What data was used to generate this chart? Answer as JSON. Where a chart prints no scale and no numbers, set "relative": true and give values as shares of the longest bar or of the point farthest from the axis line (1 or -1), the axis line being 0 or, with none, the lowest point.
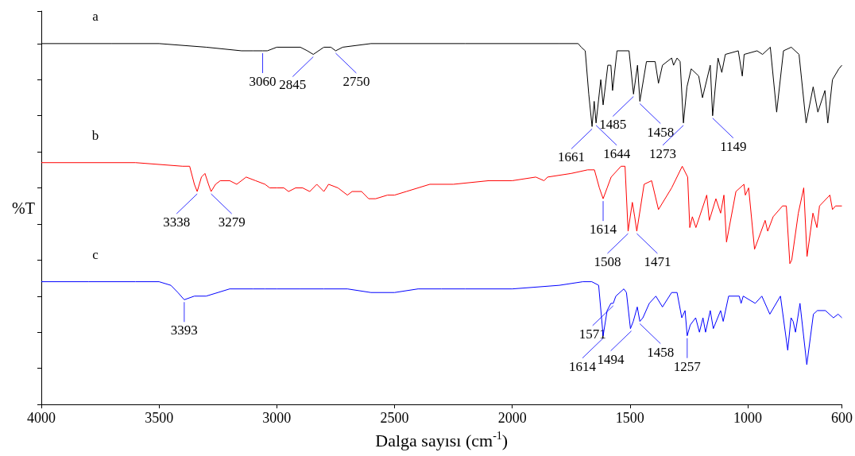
{
  "chart_data": {
    "type": "line",
    "relative": true,
    "xlabel": "Dalga sayısı (cm$^{-1}$)",
    "ylabel": "%T",
    "xlim": [
      4000,
      600
    ],
    "xticks": [
      4000,
      3500,
      3000,
      2500,
      2000,
      1500,
      1000,
      600
    ],
    "grid": false,
    "legend": false,
    "series": [
      {
        "name": "a",
        "color": "#000000",
        "x": [
          4000,
          3700,
          3500,
          3300,
          3150,
          3100,
          3060,
          3040,
          3000,
          2900,
          2870,
          2845,
          2800,
          2770,
          2750,
          2720,
          2600,
          2200,
          1800,
          1720,
          1707,
          1690,
          1675,
          1661,
          1652,
          1644,
          1624,
          1614,
          1594,
          1581,
          1574,
          1555,
          1504,
          1485,
          1468,
          1458,
          1430,
          1393,
          1379,
          1362,
          1323,
          1315,
          1300,
          1287,
          1273,
          1258,
          1240,
          1208,
          1192,
          1159,
          1149,
          1126,
          1110,
          1095,
          1040,
          1023,
          1015,
          960,
          937,
          904,
          877,
          848,
          815,
          782,
          752,
          722,
          702,
          672,
          660,
          640,
          613,
          600
        ],
        "values": [
          1.0,
          1.0,
          1.0,
          0.99,
          0.98,
          0.98,
          0.98,
          0.98,
          0.99,
          0.99,
          0.98,
          0.97,
          0.99,
          0.99,
          0.98,
          0.99,
          1.0,
          1.0,
          1.0,
          1.0,
          0.99,
          0.98,
          0.86,
          0.77,
          0.84,
          0.78,
          0.9,
          0.83,
          0.94,
          0.94,
          0.87,
          0.98,
          0.98,
          0.86,
          0.94,
          0.84,
          0.95,
          0.95,
          0.89,
          0.94,
          0.96,
          0.94,
          0.96,
          0.95,
          0.78,
          0.88,
          0.93,
          0.91,
          0.85,
          0.94,
          0.8,
          0.96,
          0.92,
          0.97,
          0.98,
          0.91,
          0.97,
          0.98,
          0.97,
          0.99,
          0.81,
          0.98,
          0.99,
          0.97,
          0.78,
          0.88,
          0.81,
          0.87,
          0.78,
          0.9,
          0.93,
          0.94
        ]
      },
      {
        "name": "b",
        "color": "#ff0000",
        "x": [
          4000,
          3600,
          3400,
          3370,
          3350,
          3338,
          3320,
          3305,
          3290,
          3279,
          3260,
          3240,
          3200,
          3170,
          3130,
          3090,
          3050,
          3030,
          3000,
          2970,
          2950,
          2920,
          2890,
          2860,
          2830,
          2800,
          2780,
          2740,
          2700,
          2680,
          2640,
          2610,
          2580,
          2530,
          2500,
          2450,
          2350,
          2250,
          2100,
          2000,
          1900,
          1865,
          1850,
          1750,
          1680,
          1651,
          1630,
          1614,
          1597,
          1580,
          1538,
          1521,
          1508,
          1490,
          1480,
          1471,
          1440,
          1408,
          1379,
          1323,
          1278,
          1255,
          1246,
          1235,
          1220,
          1174,
          1163,
          1135,
          1115,
          1101,
          1090,
          1050,
          1016,
          1010,
          996,
          971,
          954,
          926,
          915,
          892,
          852,
          836,
          821,
          813,
          785,
          762,
          748,
          723,
          706,
          695,
          651,
          640,
          627,
          600
        ],
        "values": [
          0.67,
          0.67,
          0.66,
          0.66,
          0.61,
          0.59,
          0.63,
          0.64,
          0.61,
          0.59,
          0.61,
          0.62,
          0.62,
          0.61,
          0.63,
          0.62,
          0.61,
          0.6,
          0.6,
          0.6,
          0.59,
          0.6,
          0.6,
          0.59,
          0.61,
          0.59,
          0.61,
          0.6,
          0.58,
          0.59,
          0.59,
          0.57,
          0.57,
          0.58,
          0.58,
          0.59,
          0.61,
          0.61,
          0.62,
          0.62,
          0.63,
          0.62,
          0.63,
          0.64,
          0.65,
          0.65,
          0.6,
          0.57,
          0.6,
          0.63,
          0.66,
          0.66,
          0.48,
          0.56,
          0.52,
          0.48,
          0.61,
          0.62,
          0.54,
          0.6,
          0.66,
          0.63,
          0.49,
          0.52,
          0.49,
          0.58,
          0.51,
          0.57,
          0.53,
          0.58,
          0.45,
          0.59,
          0.61,
          0.58,
          0.6,
          0.43,
          0.46,
          0.51,
          0.48,
          0.52,
          0.55,
          0.55,
          0.39,
          0.4,
          0.53,
          0.6,
          0.41,
          0.53,
          0.49,
          0.55,
          0.58,
          0.54,
          0.55,
          0.55
        ]
      },
      {
        "name": "c",
        "color": "#0000ff",
        "x": [
          4000,
          3800,
          3600,
          3500,
          3450,
          3420,
          3393,
          3350,
          3300,
          3200,
          3100,
          3050,
          3000,
          2900,
          2800,
          2700,
          2600,
          2500,
          2400,
          2300,
          2200,
          2000,
          1800,
          1700,
          1662,
          1633,
          1614,
          1597,
          1581,
          1571,
          1560,
          1526,
          1515,
          1498,
          1486,
          1469,
          1458,
          1445,
          1418,
          1390,
          1362,
          1323,
          1300,
          1280,
          1266,
          1257,
          1244,
          1221,
          1205,
          1190,
          1179,
          1159,
          1146,
          1115,
          1104,
          1081,
          1036,
          1028,
          1019,
          968,
          940,
          906,
          861,
          830,
          816,
          807,
          797,
          778,
          749,
          721,
          704,
          670,
          636,
          616,
          600
        ],
        "values": [
          0.34,
          0.34,
          0.34,
          0.34,
          0.33,
          0.31,
          0.29,
          0.3,
          0.3,
          0.32,
          0.32,
          0.32,
          0.32,
          0.32,
          0.32,
          0.32,
          0.31,
          0.31,
          0.32,
          0.32,
          0.32,
          0.32,
          0.33,
          0.34,
          0.34,
          0.33,
          0.19,
          0.26,
          0.28,
          0.28,
          0.3,
          0.32,
          0.31,
          0.21,
          0.23,
          0.27,
          0.23,
          0.24,
          0.28,
          0.3,
          0.27,
          0.31,
          0.31,
          0.24,
          0.26,
          0.19,
          0.22,
          0.24,
          0.2,
          0.24,
          0.2,
          0.26,
          0.21,
          0.26,
          0.23,
          0.3,
          0.3,
          0.28,
          0.3,
          0.28,
          0.3,
          0.25,
          0.3,
          0.15,
          0.24,
          0.23,
          0.2,
          0.28,
          0.11,
          0.25,
          0.26,
          0.26,
          0.24,
          0.25,
          0.24
        ]
      }
    ],
    "annotations": [
      {
        "text": "3060",
        "x": 3060,
        "y": 0.98
      },
      {
        "text": "2845",
        "x": 2845,
        "y": 0.97
      },
      {
        "text": "2750",
        "x": 2750,
        "y": 0.98
      },
      {
        "text": "1661",
        "x": 1661,
        "y": 0.77
      },
      {
        "text": "1644",
        "x": 1644,
        "y": 0.78
      },
      {
        "text": "1485",
        "x": 1485,
        "y": 0.86
      },
      {
        "text": "1458",
        "x": 1458,
        "y": 0.84
      },
      {
        "text": "1273",
        "x": 1273,
        "y": 0.78
      },
      {
        "text": "1149",
        "x": 1149,
        "y": 0.8
      },
      {
        "text": "3338",
        "x": 3338,
        "y": 0.59
      },
      {
        "text": "3279",
        "x": 3279,
        "y": 0.59
      },
      {
        "text": "1614",
        "x": 1614,
        "y": 0.57
      },
      {
        "text": "1508",
        "x": 1508,
        "y": 0.48
      },
      {
        "text": "1471",
        "x": 1471,
        "y": 0.48
      },
      {
        "text": "3393",
        "x": 3393,
        "y": 0.29
      },
      {
        "text": "1614",
        "x": 1614,
        "y": 0.19
      },
      {
        "text": "1571",
        "x": 1571,
        "y": 0.28
      },
      {
        "text": "1494",
        "x": 1494,
        "y": 0.21
      },
      {
        "text": "1458",
        "x": 1458,
        "y": 0.23
      },
      {
        "text": "1257",
        "x": 1257,
        "y": 0.19
      }
    ]
  }
}
